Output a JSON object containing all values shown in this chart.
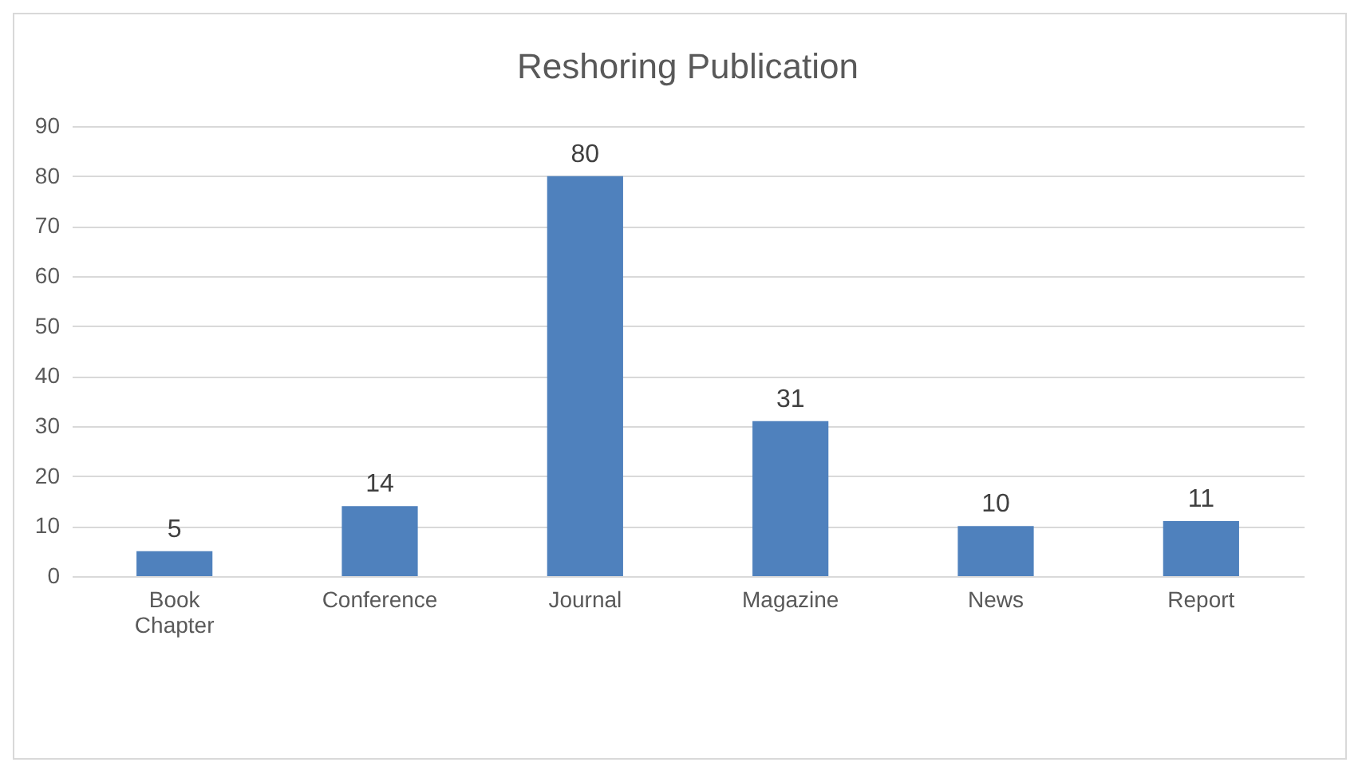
{
  "chart_data": {
    "type": "bar",
    "title": "Reshoring Publication",
    "categories": [
      "Book Chapter",
      "Conference",
      "Journal",
      "Magazine",
      "News",
      "Report"
    ],
    "values": [
      5,
      14,
      80,
      31,
      10,
      11
    ],
    "color": "#4f81bd",
    "ylim": [
      0,
      90
    ],
    "yticks": [
      0,
      10,
      20,
      30,
      40,
      50,
      60,
      70,
      80,
      90
    ],
    "grid": "y",
    "data_labels": true
  }
}
